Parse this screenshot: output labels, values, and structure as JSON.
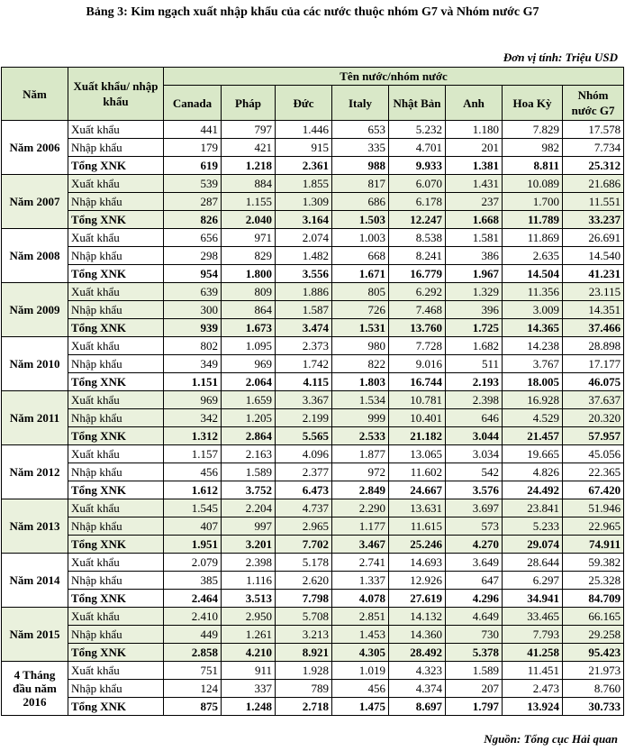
{
  "title": "Bảng 3: Kim ngạch xuất nhập khẩu của  các nước thuộc nhóm G7 và Nhóm nước G7",
  "unit": "Đơn vị tính: Triệu USD",
  "source": "Nguồn: Tổng cục Hải quan",
  "header": {
    "year": "Năm",
    "type": "Xuất khẩu/ nhập khẩu",
    "group": "Tên nước/nhóm nước",
    "countries": [
      "Canada",
      "Pháp",
      "Đức",
      "Italy",
      "Nhật Bản",
      "Anh",
      "Hoa Kỳ",
      "Nhóm nước G7"
    ]
  },
  "labels": {
    "export": "Xuất khẩu",
    "import": "Nhập khẩu",
    "total": "Tổng XNK"
  },
  "years": [
    {
      "year": "Năm 2006",
      "export": [
        "441",
        "797",
        "1.446",
        "653",
        "5.232",
        "1.180",
        "7.829",
        "17.578"
      ],
      "import": [
        "179",
        "421",
        "915",
        "335",
        "4.701",
        "201",
        "982",
        "7.734"
      ],
      "total": [
        "619",
        "1.218",
        "2.361",
        "988",
        "9.933",
        "1.381",
        "8.811",
        "25.312"
      ]
    },
    {
      "year": "Năm 2007",
      "export": [
        "539",
        "884",
        "1.855",
        "817",
        "6.070",
        "1.431",
        "10.089",
        "21.686"
      ],
      "import": [
        "287",
        "1.155",
        "1.309",
        "686",
        "6.178",
        "237",
        "1.700",
        "11.551"
      ],
      "total": [
        "826",
        "2.040",
        "3.164",
        "1.503",
        "12.247",
        "1.668",
        "11.789",
        "33.237"
      ]
    },
    {
      "year": "Năm 2008",
      "export": [
        "656",
        "971",
        "2.074",
        "1.003",
        "8.538",
        "1.581",
        "11.869",
        "26.691"
      ],
      "import": [
        "298",
        "829",
        "1.482",
        "668",
        "8.241",
        "386",
        "2.635",
        "14.540"
      ],
      "total": [
        "954",
        "1.800",
        "3.556",
        "1.671",
        "16.779",
        "1.967",
        "14.504",
        "41.231"
      ]
    },
    {
      "year": "Năm 2009",
      "export": [
        "639",
        "809",
        "1.886",
        "805",
        "6.292",
        "1.329",
        "11.356",
        "23.115"
      ],
      "import": [
        "300",
        "864",
        "1.587",
        "726",
        "7.468",
        "396",
        "3.009",
        "14.351"
      ],
      "total": [
        "939",
        "1.673",
        "3.474",
        "1.531",
        "13.760",
        "1.725",
        "14.365",
        "37.466"
      ]
    },
    {
      "year": "Năm 2010",
      "export": [
        "802",
        "1.095",
        "2.373",
        "980",
        "7.728",
        "1.682",
        "14.238",
        "28.898"
      ],
      "import": [
        "349",
        "969",
        "1.742",
        "822",
        "9.016",
        "511",
        "3.767",
        "17.177"
      ],
      "total": [
        "1.151",
        "2.064",
        "4.115",
        "1.803",
        "16.744",
        "2.193",
        "18.005",
        "46.075"
      ]
    },
    {
      "year": "Năm 2011",
      "export": [
        "969",
        "1.659",
        "3.367",
        "1.534",
        "10.781",
        "2.398",
        "16.928",
        "37.637"
      ],
      "import": [
        "342",
        "1.205",
        "2.199",
        "999",
        "10.401",
        "646",
        "4.529",
        "20.320"
      ],
      "total": [
        "1.312",
        "2.864",
        "5.565",
        "2.533",
        "21.182",
        "3.044",
        "21.457",
        "57.957"
      ]
    },
    {
      "year": "Năm 2012",
      "export": [
        "1.157",
        "2.163",
        "4.096",
        "1.877",
        "13.065",
        "3.034",
        "19.665",
        "45.056"
      ],
      "import": [
        "456",
        "1.589",
        "2.377",
        "972",
        "11.602",
        "542",
        "4.826",
        "22.365"
      ],
      "total": [
        "1.612",
        "3.752",
        "6.473",
        "2.849",
        "24.667",
        "3.576",
        "24.492",
        "67.420"
      ]
    },
    {
      "year": "Năm 2013",
      "export": [
        "1.545",
        "2.204",
        "4.737",
        "2.290",
        "13.631",
        "3.697",
        "23.841",
        "51.946"
      ],
      "import": [
        "407",
        "997",
        "2.965",
        "1.177",
        "11.615",
        "573",
        "5.233",
        "22.965"
      ],
      "total": [
        "1.951",
        "3.201",
        "7.702",
        "3.467",
        "25.246",
        "4.270",
        "29.074",
        "74.911"
      ]
    },
    {
      "year": "Năm 2014",
      "export": [
        "2.079",
        "2.398",
        "5.178",
        "2.741",
        "14.693",
        "3.649",
        "28.644",
        "59.382"
      ],
      "import": [
        "385",
        "1.116",
        "2.620",
        "1.337",
        "12.926",
        "647",
        "6.297",
        "25.328"
      ],
      "total": [
        "2.464",
        "3.513",
        "7.798",
        "4.078",
        "27.619",
        "4.296",
        "34.941",
        "84.709"
      ]
    },
    {
      "year": "Năm 2015",
      "export": [
        "2.410",
        "2.950",
        "5.708",
        "2.851",
        "14.132",
        "4.649",
        "33.465",
        "66.165"
      ],
      "import": [
        "449",
        "1.261",
        "3.213",
        "1.453",
        "14.360",
        "730",
        "7.793",
        "29.258"
      ],
      "total": [
        "2.858",
        "4.210",
        "8.921",
        "4.305",
        "28.492",
        "5.378",
        "41.258",
        "95.423"
      ]
    },
    {
      "year": "4 Tháng đầu năm 2016",
      "export": [
        "751",
        "911",
        "1.928",
        "1.019",
        "4.323",
        "1.589",
        "11.451",
        "21.973"
      ],
      "import": [
        "124",
        "337",
        "789",
        "456",
        "4.374",
        "207",
        "2.473",
        "8.760"
      ],
      "total": [
        "875",
        "1.248",
        "2.718",
        "1.475",
        "8.697",
        "1.797",
        "13.924",
        "30.733"
      ]
    }
  ]
}
